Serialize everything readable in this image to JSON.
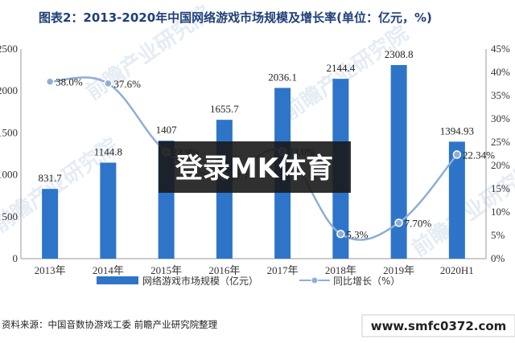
{
  "chart_data": {
    "type": "bar",
    "title": "图表2：2013-2020年中国网络游戏市场规模及增长率(单位：亿元，%)",
    "categories": [
      "2013年",
      "2014年",
      "2015年",
      "2016年",
      "2017年",
      "2018年",
      "2019年",
      "2020H1"
    ],
    "series": [
      {
        "name": "网络游戏市场规模（亿元）",
        "type": "bar",
        "axis": "left",
        "values": [
          831.7,
          1144.8,
          1407,
          1655.7,
          2036.1,
          2144.4,
          2308.8,
          1394.93
        ],
        "value_labels": [
          "831.7",
          "1144.8",
          "1407",
          "1655.7",
          "2036.1",
          "2144.4",
          "2308.8",
          "1394.93"
        ],
        "color": "#2e75c9"
      },
      {
        "name": "同比增长（%）",
        "type": "line",
        "axis": "right",
        "values": [
          38.0,
          37.6,
          22.9,
          17.7,
          23.0,
          5.3,
          7.7,
          22.34
        ],
        "value_labels": [
          "38.0%",
          "37.6%",
          "22.9%",
          "17.7",
          "23.0%",
          "5.3%",
          "7.70%",
          "22.34%"
        ],
        "color": "#8eaed6"
      }
    ],
    "left_axis": {
      "ylim": [
        0,
        2500
      ],
      "ticks": [
        "0",
        "500",
        "1000",
        "1500",
        "2000",
        "2500"
      ]
    },
    "right_axis": {
      "ylim": [
        0,
        45
      ],
      "ticks": [
        "0%",
        "5%",
        "10%",
        "15%",
        "20%",
        "25%",
        "30%",
        "35%",
        "40%",
        "45%"
      ]
    },
    "legend_position": "bottom",
    "grid": false
  },
  "source_note": "资料来源：中国音数协游戏工委 前瞻产业研究院整理",
  "overlay_banner": "登录MK体育",
  "url_banner": "www.smfc0372.com",
  "watermark": "前瞻产业研究院",
  "colors": {
    "title": "#1f3f7a",
    "bar": "#2e75c9",
    "line": "#8eaed6",
    "banner_bg": "#1a1a1a"
  }
}
